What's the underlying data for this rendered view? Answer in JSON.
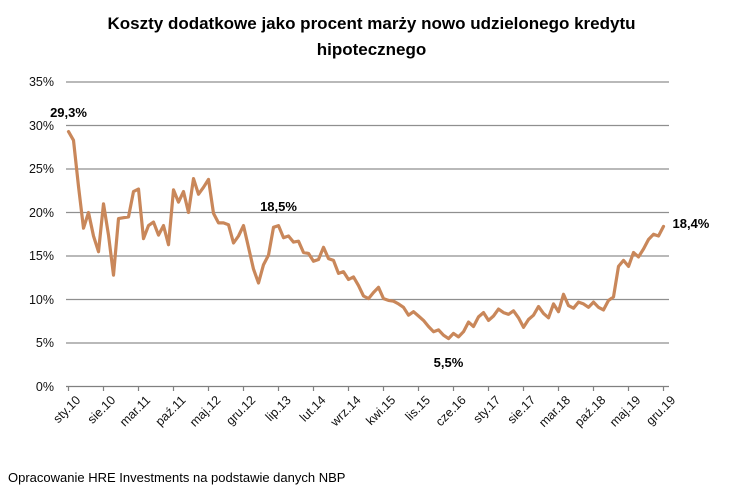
{
  "title_lines": [
    "Koszty dodatkowe jako procent marży nowo udzielonego kredytu",
    "hipotecznego"
  ],
  "source_note": "Opracowanie HRE Investments na podstawie danych NBP",
  "colors": {
    "line": "#C9875A",
    "grid": "#8F8F8F",
    "axis": "#808080",
    "text": "#000000"
  },
  "chart_data": {
    "type": "line",
    "title": "Koszty dodatkowe jako procent marży nowo udzielonego kredytu hipotecznego",
    "unit": "%",
    "x_frequency": "monthly",
    "x_start": "sty.10",
    "x_end": "gru.19",
    "grid": true,
    "legend": "none",
    "ylim": [
      0,
      35
    ],
    "y_ticks": [
      {
        "value": 0,
        "label": "0%"
      },
      {
        "value": 5,
        "label": "5%"
      },
      {
        "value": 10,
        "label": "10%"
      },
      {
        "value": 15,
        "label": "15%"
      },
      {
        "value": 20,
        "label": "20%"
      },
      {
        "value": 25,
        "label": "25%"
      },
      {
        "value": 30,
        "label": "30%"
      },
      {
        "value": 35,
        "label": "35%"
      }
    ],
    "x_tick_labels": [
      {
        "month": 0,
        "label": "sty.10"
      },
      {
        "month": 7,
        "label": "sie.10"
      },
      {
        "month": 14,
        "label": "mar.11"
      },
      {
        "month": 21,
        "label": "paź.11"
      },
      {
        "month": 28,
        "label": "maj.12"
      },
      {
        "month": 35,
        "label": "gru.12"
      },
      {
        "month": 42,
        "label": "lip.13"
      },
      {
        "month": 49,
        "label": "lut.14"
      },
      {
        "month": 56,
        "label": "wrz.14"
      },
      {
        "month": 63,
        "label": "kwi.15"
      },
      {
        "month": 70,
        "label": "lis.15"
      },
      {
        "month": 77,
        "label": "cze.16"
      },
      {
        "month": 84,
        "label": "sty.17"
      },
      {
        "month": 91,
        "label": "sie.17"
      },
      {
        "month": 98,
        "label": "mar.18"
      },
      {
        "month": 105,
        "label": "paź.18"
      },
      {
        "month": 112,
        "label": "maj.19"
      },
      {
        "month": 119,
        "label": "gru.19"
      }
    ],
    "line_color": "#C9875A",
    "values": [
      29.3,
      28.3,
      23.0,
      18.2,
      20.0,
      17.3,
      15.5,
      21.0,
      17.4,
      12.8,
      19.3,
      19.4,
      19.5,
      22.4,
      22.7,
      17.0,
      18.5,
      18.9,
      17.4,
      18.5,
      16.3,
      22.6,
      21.2,
      22.4,
      20.0,
      23.9,
      22.1,
      22.9,
      23.8,
      19.9,
      18.8,
      18.8,
      18.6,
      16.5,
      17.3,
      18.5,
      16.0,
      13.5,
      11.9,
      14.0,
      15.1,
      18.3,
      18.5,
      17.1,
      17.3,
      16.6,
      16.7,
      15.4,
      15.3,
      14.4,
      14.6,
      16.0,
      14.7,
      14.5,
      13.0,
      13.2,
      12.3,
      12.6,
      11.6,
      10.4,
      10.1,
      10.8,
      11.4,
      10.1,
      9.9,
      9.8,
      9.5,
      9.1,
      8.2,
      8.6,
      8.1,
      7.6,
      6.9,
      6.3,
      6.5,
      5.9,
      5.5,
      6.1,
      5.7,
      6.3,
      7.4,
      6.9,
      8.0,
      8.5,
      7.6,
      8.1,
      8.9,
      8.5,
      8.3,
      8.7,
      7.9,
      6.8,
      7.7,
      8.2,
      9.2,
      8.4,
      7.9,
      9.5,
      8.6,
      10.6,
      9.3,
      9.0,
      9.7,
      9.5,
      9.1,
      9.7,
      9.1,
      8.8,
      9.9,
      10.3,
      13.8,
      14.5,
      13.8,
      15.4,
      14.9,
      15.8,
      16.9,
      17.5,
      17.3,
      18.4
    ],
    "annotations": [
      {
        "label": "29,3%",
        "month": 0,
        "value": 29.3,
        "placement": "above"
      },
      {
        "label": "18,5%",
        "month": 42,
        "value": 18.5,
        "placement": "above"
      },
      {
        "label": "5,5%",
        "month": 76,
        "value": 5.5,
        "placement": "below"
      },
      {
        "label": "18,4%",
        "month": 119,
        "value": 18.4,
        "placement": "right"
      }
    ]
  }
}
